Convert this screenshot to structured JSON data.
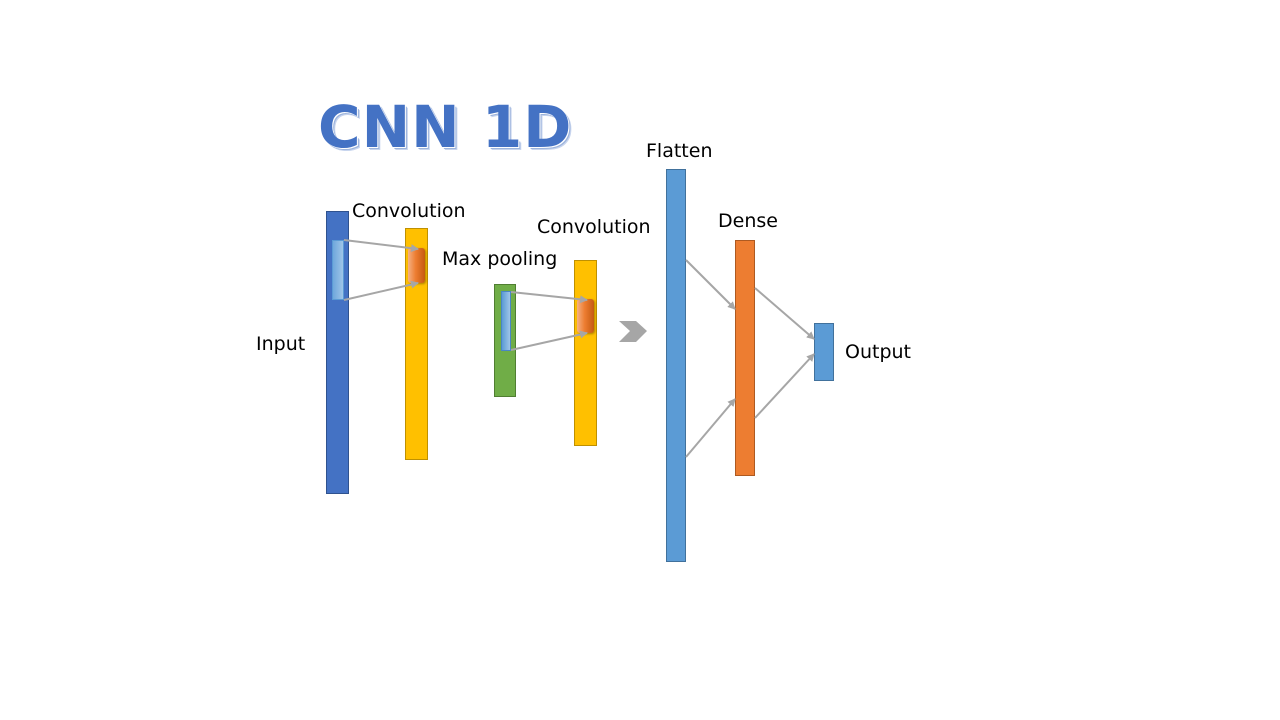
{
  "title": "CNN 1D",
  "labels": {
    "input": "Input",
    "convolution_1": "Convolution",
    "max_pooling": "Max pooling",
    "convolution_2": "Convolution",
    "flatten": "Flatten",
    "dense": "Dense",
    "output": "Output"
  },
  "colors": {
    "title": "#4472c4",
    "input": "#4472c4",
    "convolution": "#ffc000",
    "max_pooling": "#70ad47",
    "flatten": "#5b9bd5",
    "dense": "#ed7d31",
    "output": "#5b9bd5",
    "arrow": "#a6a6a6"
  }
}
